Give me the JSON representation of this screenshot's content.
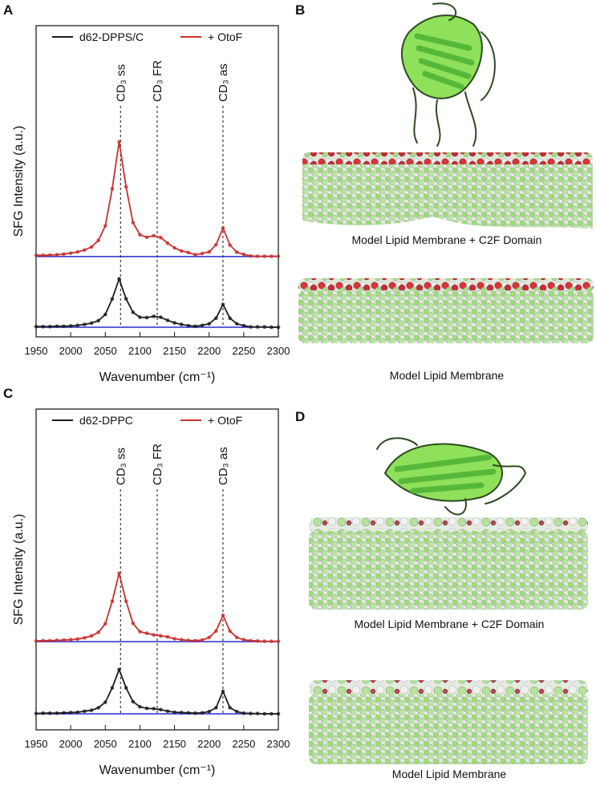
{
  "chart_data": [
    {
      "type": "line",
      "panel": "A",
      "xlabel": "Wavenumber (cm⁻¹)",
      "ylabel": "SFG Intensity (a.u.)",
      "x": [
        1950,
        1960,
        1970,
        1980,
        1990,
        2000,
        2010,
        2020,
        2030,
        2040,
        2050,
        2060,
        2070,
        2080,
        2090,
        2100,
        2110,
        2120,
        2130,
        2140,
        2150,
        2160,
        2170,
        2180,
        2190,
        2200,
        2210,
        2220,
        2230,
        2240,
        2250,
        2260,
        2270,
        2280,
        2290,
        2300
      ],
      "series": [
        {
          "name": "d62-DPPS/C",
          "color": "#1e1e1e",
          "values": [
            0.033,
            0.033,
            0.033,
            0.034,
            0.034,
            0.035,
            0.037,
            0.04,
            0.044,
            0.052,
            0.072,
            0.122,
            0.186,
            0.122,
            0.079,
            0.063,
            0.062,
            0.066,
            0.063,
            0.053,
            0.045,
            0.04,
            0.036,
            0.034,
            0.037,
            0.042,
            0.06,
            0.104,
            0.06,
            0.042,
            0.036,
            0.032,
            0.032,
            0.032,
            0.031,
            0.031
          ]
        },
        {
          "name": "+ OtoF",
          "color": "#c8302e",
          "values": [
            0.262,
            0.262,
            0.263,
            0.264,
            0.266,
            0.269,
            0.273,
            0.279,
            0.289,
            0.31,
            0.357,
            0.476,
            0.627,
            0.482,
            0.367,
            0.328,
            0.32,
            0.325,
            0.319,
            0.301,
            0.286,
            0.276,
            0.271,
            0.264,
            0.268,
            0.273,
            0.296,
            0.35,
            0.295,
            0.272,
            0.265,
            0.26,
            0.259,
            0.259,
            0.259,
            0.259
          ]
        }
      ],
      "baselines": [
        0.031,
        0.258
      ],
      "baseline_color": "#2a2ad0",
      "annotations": [
        {
          "text": "CD₃ ss",
          "x": 2072
        },
        {
          "text": "CD₃ FR",
          "x": 2125
        },
        {
          "text": "CD₃ as",
          "x": 2220
        }
      ],
      "xlim": [
        1950,
        2300
      ],
      "xticks": [
        1950,
        2000,
        2050,
        2100,
        2150,
        2200,
        2250,
        2300
      ],
      "ylim": [
        0,
        1
      ]
    },
    {
      "type": "line",
      "panel": "C",
      "xlabel": "Wavenumber (cm⁻¹)",
      "ylabel": "SFG Intensity (a.u.)",
      "x": [
        1950,
        1960,
        1970,
        1980,
        1990,
        2000,
        2010,
        2020,
        2030,
        2040,
        2050,
        2060,
        2070,
        2080,
        2090,
        2100,
        2110,
        2120,
        2130,
        2140,
        2150,
        2160,
        2170,
        2180,
        2190,
        2200,
        2210,
        2220,
        2230,
        2240,
        2250,
        2260,
        2270,
        2280,
        2290,
        2300
      ],
      "series": [
        {
          "name": "d62-DPPC",
          "color": "#1e1e1e",
          "values": [
            0.051,
            0.052,
            0.052,
            0.052,
            0.053,
            0.054,
            0.055,
            0.058,
            0.061,
            0.069,
            0.086,
            0.131,
            0.188,
            0.131,
            0.088,
            0.072,
            0.067,
            0.066,
            0.063,
            0.058,
            0.055,
            0.054,
            0.053,
            0.052,
            0.053,
            0.057,
            0.069,
            0.12,
            0.069,
            0.057,
            0.052,
            0.051,
            0.051,
            0.05,
            0.05,
            0.05
          ]
        },
        {
          "name": "+ OtoF",
          "color": "#c8302e",
          "values": [
            0.277,
            0.278,
            0.278,
            0.279,
            0.28,
            0.281,
            0.283,
            0.287,
            0.293,
            0.304,
            0.331,
            0.401,
            0.488,
            0.401,
            0.332,
            0.306,
            0.301,
            0.296,
            0.293,
            0.29,
            0.284,
            0.281,
            0.279,
            0.278,
            0.28,
            0.288,
            0.308,
            0.357,
            0.308,
            0.288,
            0.281,
            0.278,
            0.277,
            0.276,
            0.276,
            0.276
          ]
        }
      ],
      "baselines": [
        0.05,
        0.275
      ],
      "baseline_color": "#2a2ad0",
      "annotations": [
        {
          "text": "CD₃ ss",
          "x": 2072
        },
        {
          "text": "CD₃ FR",
          "x": 2125
        },
        {
          "text": "CD₃ as",
          "x": 2220
        }
      ],
      "xlim": [
        1950,
        2300
      ],
      "xticks": [
        1950,
        2000,
        2050,
        2100,
        2150,
        2200,
        2250,
        2300
      ],
      "ylim": [
        0,
        1
      ]
    }
  ],
  "illustrations": [
    {
      "panel": "B",
      "captions": [
        "Model Lipid Membrane + C2F Domain",
        "Model Lipid Membrane"
      ]
    },
    {
      "panel": "D",
      "captions": [
        "Model Lipid Membrane + C2F Domain",
        "Model Lipid Membrane"
      ]
    }
  ]
}
